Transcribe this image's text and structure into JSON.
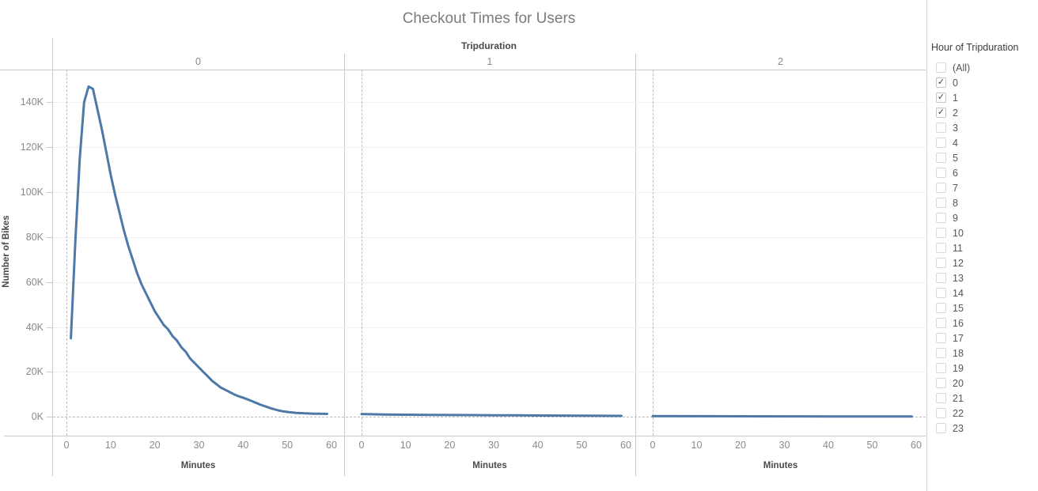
{
  "title": "Checkout Times for Users",
  "column_header": "Tripduration",
  "axes": {
    "x_label": "Minutes",
    "y_label": "Number of Bikes"
  },
  "chart_data": {
    "type": "line",
    "title": "Checkout Times for Users",
    "column_field": "Tripduration",
    "xlabel": "Minutes",
    "ylabel": "Number of Bikes",
    "x_ticks": [
      0,
      10,
      20,
      30,
      40,
      50,
      60
    ],
    "y_tick_labels": [
      "0K",
      "20K",
      "40K",
      "60K",
      "80K",
      "100K",
      "120K",
      "140K"
    ],
    "y_tick_values_thousands": [
      0,
      20,
      40,
      60,
      80,
      100,
      120,
      140
    ],
    "xlim": [
      -3,
      63
    ],
    "ylim_thousands": [
      0,
      155
    ],
    "grid": "light horizontal gridlines; dashed zero lines on both axes",
    "legend": "none",
    "line_color": "#4e79a7",
    "panels": [
      {
        "label": "0",
        "x": [
          1,
          2,
          3,
          4,
          5,
          6,
          7,
          8,
          9,
          10,
          11,
          12,
          13,
          14,
          15,
          16,
          17,
          18,
          19,
          20,
          21,
          22,
          23,
          24,
          25,
          26,
          27,
          28,
          29,
          30,
          31,
          32,
          33,
          34,
          35,
          36,
          37,
          38,
          39,
          40,
          41,
          42,
          43,
          44,
          45,
          46,
          47,
          48,
          49,
          50,
          51,
          52,
          53,
          54,
          55,
          56,
          57,
          58,
          59
        ],
        "y_thousands": [
          35,
          78,
          115,
          140,
          147,
          146,
          137,
          128,
          118,
          108,
          99,
          91,
          83,
          76,
          70,
          64,
          59,
          55,
          51,
          47,
          44,
          41,
          39,
          36,
          34,
          31,
          29,
          26,
          24,
          22,
          20,
          18,
          16,
          14.5,
          13,
          12,
          11,
          10,
          9.2,
          8.5,
          7.8,
          7,
          6.2,
          5.4,
          4.7,
          4,
          3.4,
          2.9,
          2.5,
          2.2,
          2,
          1.8,
          1.7,
          1.6,
          1.5,
          1.45,
          1.4,
          1.38,
          1.35
        ]
      },
      {
        "label": "1",
        "x": [
          0,
          5,
          10,
          15,
          20,
          25,
          30,
          35,
          40,
          45,
          50,
          55,
          59
        ],
        "y_thousands": [
          1.3,
          1.1,
          1.0,
          0.9,
          0.85,
          0.8,
          0.75,
          0.7,
          0.65,
          0.6,
          0.55,
          0.5,
          0.45
        ]
      },
      {
        "label": "2",
        "x": [
          0,
          10,
          20,
          30,
          40,
          50,
          59
        ],
        "y_thousands": [
          0.35,
          0.3,
          0.27,
          0.24,
          0.22,
          0.2,
          0.18
        ]
      }
    ]
  },
  "filter": {
    "title": "Hour of Tripduration",
    "items": [
      {
        "label": "(All)",
        "checked": false
      },
      {
        "label": "0",
        "checked": true
      },
      {
        "label": "1",
        "checked": true
      },
      {
        "label": "2",
        "checked": true
      },
      {
        "label": "3",
        "checked": false
      },
      {
        "label": "4",
        "checked": false
      },
      {
        "label": "5",
        "checked": false
      },
      {
        "label": "6",
        "checked": false
      },
      {
        "label": "7",
        "checked": false
      },
      {
        "label": "8",
        "checked": false
      },
      {
        "label": "9",
        "checked": false
      },
      {
        "label": "10",
        "checked": false
      },
      {
        "label": "11",
        "checked": false
      },
      {
        "label": "12",
        "checked": false
      },
      {
        "label": "13",
        "checked": false
      },
      {
        "label": "14",
        "checked": false
      },
      {
        "label": "15",
        "checked": false
      },
      {
        "label": "16",
        "checked": false
      },
      {
        "label": "17",
        "checked": false
      },
      {
        "label": "18",
        "checked": false
      },
      {
        "label": "19",
        "checked": false
      },
      {
        "label": "20",
        "checked": false
      },
      {
        "label": "21",
        "checked": false
      },
      {
        "label": "22",
        "checked": false
      },
      {
        "label": "23",
        "checked": false
      }
    ]
  },
  "colors": {
    "line": "#4e79a7",
    "frame": "#c9c9c9",
    "grid": "#f0f0f0",
    "zero": "#bdbdbd",
    "tick-text": "#8a8a8a",
    "dark-text": "#4a4a4a",
    "title-text": "#7b7b7b",
    "cb-border": "#d9d9d9",
    "check": "#3f3f3f",
    "item-text": "#53565c",
    "divider": "#d4d4d4"
  }
}
